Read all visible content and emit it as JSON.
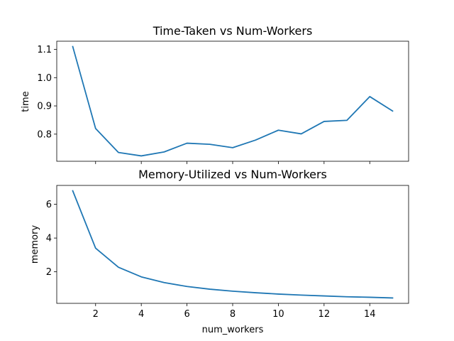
{
  "chart_data": [
    {
      "type": "line",
      "title": "Time-Taken vs Num-Workers",
      "xlabel": "",
      "ylabel": "time",
      "x": [
        1,
        2,
        3,
        4,
        5,
        6,
        7,
        8,
        9,
        10,
        11,
        12,
        13,
        14,
        15
      ],
      "series": [
        {
          "values": [
            1.11,
            0.82,
            0.735,
            0.723,
            0.737,
            0.768,
            0.764,
            0.752,
            0.779,
            0.814,
            0.801,
            0.845,
            0.849,
            0.933,
            0.882
          ],
          "color": "#1f77b4"
        }
      ],
      "xlim": [
        0.3,
        15.7
      ],
      "ylim": [
        0.704,
        1.129
      ],
      "xticks": [
        2,
        4,
        6,
        8,
        10,
        12,
        14
      ],
      "xtick_labels_visible": false,
      "yticks": [
        0.8,
        0.9,
        1.0,
        1.1
      ],
      "ytick_labels": [
        "0.8",
        "0.9",
        "1.0",
        "1.1"
      ],
      "grid": false
    },
    {
      "type": "line",
      "title": "Memory-Utilized vs Num-Workers",
      "xlabel": "num_workers",
      "ylabel": "memory",
      "x": [
        1,
        2,
        3,
        4,
        5,
        6,
        7,
        8,
        9,
        10,
        11,
        12,
        13,
        14,
        15
      ],
      "series": [
        {
          "values": [
            6.8,
            3.4,
            2.27,
            1.7,
            1.36,
            1.13,
            0.97,
            0.85,
            0.76,
            0.68,
            0.62,
            0.57,
            0.52,
            0.49,
            0.45
          ],
          "color": "#1f77b4"
        }
      ],
      "xlim": [
        0.3,
        15.7
      ],
      "ylim": [
        0.13,
        7.12
      ],
      "xticks": [
        2,
        4,
        6,
        8,
        10,
        12,
        14
      ],
      "xtick_labels": [
        "2",
        "4",
        "6",
        "8",
        "10",
        "12",
        "14"
      ],
      "xtick_labels_visible": true,
      "yticks": [
        2,
        4,
        6
      ],
      "ytick_labels": [
        "2",
        "4",
        "6"
      ],
      "grid": false
    }
  ]
}
